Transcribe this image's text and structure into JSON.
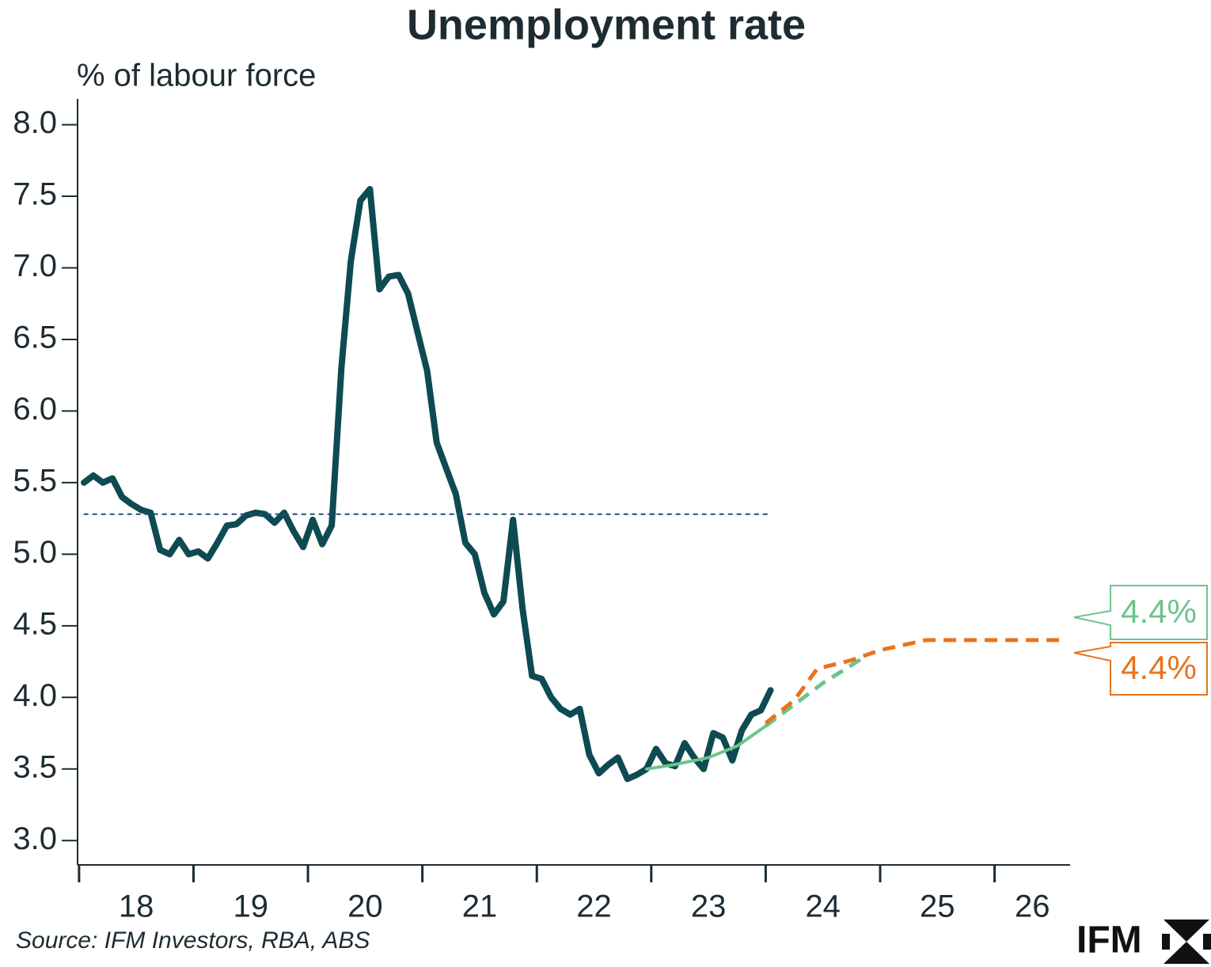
{
  "chart_data": {
    "type": "line",
    "title": "Unemployment rate",
    "y_label": "% of labour force",
    "source": "Source: IFM Investors, RBA, ABS",
    "logo": "IFM",
    "xlim": [
      17.98,
      26.66
    ],
    "xticks": [
      18,
      19,
      20,
      21,
      22,
      23,
      24,
      25,
      26
    ],
    "xtick_labels": [
      {
        "value": 18.5,
        "label": "18"
      },
      {
        "value": 19.5,
        "label": "19"
      },
      {
        "value": 20.5,
        "label": "20"
      },
      {
        "value": 21.5,
        "label": "21"
      },
      {
        "value": 22.5,
        "label": "22"
      },
      {
        "value": 23.5,
        "label": "23"
      },
      {
        "value": 24.5,
        "label": "24"
      },
      {
        "value": 25.5,
        "label": "25"
      },
      {
        "value": 26.33,
        "label": "26"
      }
    ],
    "ylim": [
      2.83,
      8.18
    ],
    "yticks": [
      {
        "value": 3,
        "label": "3.0"
      },
      {
        "value": 3.5,
        "label": "3.5"
      },
      {
        "value": 4,
        "label": "4.0"
      },
      {
        "value": 4.5,
        "label": "4.5"
      },
      {
        "value": 5,
        "label": "5.0"
      },
      {
        "value": 5.5,
        "label": "5.5"
      },
      {
        "value": 6,
        "label": "6.0"
      },
      {
        "value": 6.5,
        "label": "6.5"
      },
      {
        "value": 7,
        "label": "7.0"
      },
      {
        "value": 7.5,
        "label": "7.5"
      },
      {
        "value": 8,
        "label": "8.0"
      }
    ],
    "series": [
      {
        "color": "#0e4a52",
        "style": "solid",
        "width": 8,
        "x": [
          18.042,
          18.125,
          18.208,
          18.292,
          18.375,
          18.458,
          18.542,
          18.625,
          18.708,
          18.792,
          18.875,
          18.958,
          19.042,
          19.125,
          19.208,
          19.292,
          19.375,
          19.458,
          19.542,
          19.625,
          19.708,
          19.792,
          19.875,
          19.958,
          20.042,
          20.125,
          20.208,
          20.292,
          20.375,
          20.458,
          20.542,
          20.625,
          20.708,
          20.792,
          20.875,
          20.958,
          21.042,
          21.125,
          21.208,
          21.292,
          21.375,
          21.458,
          21.542,
          21.625,
          21.708,
          21.792,
          21.875,
          21.958,
          22.042,
          22.125,
          22.208,
          22.292,
          22.375,
          22.458,
          22.542,
          22.625,
          22.708,
          22.792,
          22.875,
          22.958,
          23.042,
          23.125,
          23.208,
          23.292,
          23.375,
          23.458,
          23.542,
          23.625,
          23.708,
          23.792,
          23.875,
          23.958,
          24.042
        ],
        "values": [
          5.5,
          5.55,
          5.5,
          5.53,
          5.4,
          5.35,
          5.31,
          5.29,
          5.03,
          5.0,
          5.1,
          5.0,
          5.02,
          4.97,
          5.08,
          5.2,
          5.21,
          5.27,
          5.29,
          5.28,
          5.22,
          5.29,
          5.16,
          5.05,
          5.24,
          5.07,
          5.2,
          6.3,
          7.05,
          7.47,
          7.55,
          6.85,
          6.94,
          6.95,
          6.82,
          6.55,
          6.28,
          5.78,
          5.6,
          5.42,
          5.08,
          5.0,
          4.73,
          4.58,
          4.67,
          5.24,
          4.62,
          4.15,
          4.13,
          4.0,
          3.92,
          3.88,
          3.92,
          3.6,
          3.47,
          3.53,
          3.58,
          3.43,
          3.46,
          3.5,
          3.64,
          3.54,
          3.52,
          3.68,
          3.58,
          3.5,
          3.75,
          3.72,
          3.56,
          3.77,
          3.88,
          3.91,
          4.05
        ]
      },
      {
        "color": "#1f4e79",
        "style": "dotted",
        "width": 2,
        "x": [
          18.04,
          24.04
        ],
        "values": [
          5.28,
          5.28
        ]
      },
      {
        "color": "#6cc48c",
        "style": "solid",
        "width": 4,
        "x": [
          22.96,
          23.2,
          23.5,
          23.75,
          24.0
        ],
        "values": [
          3.5,
          3.53,
          3.58,
          3.66,
          3.8
        ]
      },
      {
        "color": "#6cc48c",
        "style": "dashed",
        "width": 5,
        "x": [
          24.0,
          24.25,
          24.5,
          24.86
        ],
        "values": [
          3.8,
          3.95,
          4.1,
          4.28
        ]
      },
      {
        "color": "#e8731f",
        "style": "dashed",
        "width": 5,
        "x": [
          24.0,
          24.25,
          24.45,
          24.75,
          25.0,
          25.4,
          26.6
        ],
        "values": [
          3.82,
          3.98,
          4.2,
          4.26,
          4.33,
          4.4,
          4.4
        ]
      }
    ],
    "callouts": [
      {
        "value": 4.4,
        "label": "4.4%",
        "color": "#6cc48c"
      },
      {
        "value": 4.4,
        "label": "4.4%",
        "color": "#e8731f"
      }
    ]
  }
}
